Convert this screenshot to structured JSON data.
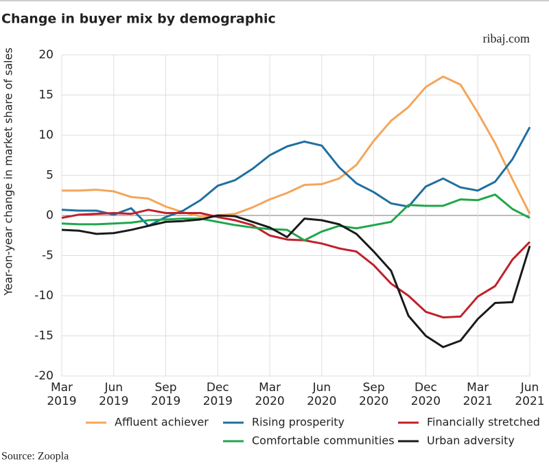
{
  "chart_data": {
    "type": "line",
    "title": "Change in buyer mix by demographic",
    "subtitle": "ribaj.com",
    "source": "Source: Zoopla",
    "y_label": "Year-on-year change in market share of sales",
    "categories": [
      "Mar 2019",
      null,
      null,
      "Jun 2019",
      null,
      null,
      "Sep 2019",
      null,
      null,
      "Dec 2019",
      null,
      null,
      "Mar 2020",
      null,
      null,
      "Jun 2020",
      null,
      null,
      "Sep 2020",
      null,
      null,
      "Dec 2020",
      null,
      null,
      "Mar 2021",
      null,
      null,
      "Jun 2021"
    ],
    "ylim": [
      -20,
      20
    ],
    "yticks": [
      -20,
      -15,
      -10,
      -5,
      0,
      5,
      10,
      15,
      20
    ],
    "grid": true,
    "series": [
      {
        "name": "Affluent achiever",
        "color": "#f4a55a",
        "values": [
          3.1,
          3.1,
          3.2,
          3.0,
          2.3,
          2.1,
          1.1,
          0.4,
          -0.1,
          0,
          0.2,
          1.0,
          2.0,
          2.8,
          3.8,
          3.9,
          4.6,
          6.3,
          9.3,
          11.8,
          13.5,
          16.0,
          17.3,
          16.3,
          12.8,
          9.0,
          4.5,
          0.2
        ]
      },
      {
        "name": "Rising prosperity",
        "color": "#1f6fa0",
        "values": [
          0.7,
          0.6,
          0.6,
          0.1,
          0.9,
          -1.3,
          -0.2,
          0.6,
          1.9,
          3.7,
          4.4,
          5.8,
          7.5,
          8.6,
          9.2,
          8.7,
          6.0,
          4.0,
          2.9,
          1.5,
          1.1,
          3.6,
          4.6,
          3.5,
          3.1,
          4.2,
          7.0,
          11.0
        ]
      },
      {
        "name": "Financially stretched",
        "color": "#c0202a",
        "values": [
          -0.3,
          0.1,
          0.2,
          0.3,
          0.2,
          0.7,
          0.3,
          0.3,
          0.3,
          -0.2,
          -0.6,
          -1.2,
          -2.5,
          -3.0,
          -3.1,
          -3.5,
          -4.1,
          -4.5,
          -6.2,
          -8.5,
          -10.0,
          -12.0,
          -12.7,
          -12.6,
          -10.1,
          -8.8,
          -5.5,
          -3.3
        ]
      },
      {
        "name": "Comfortable communities",
        "color": "#1fa64a",
        "values": [
          -1.0,
          -1.1,
          -1.1,
          -1.0,
          -0.9,
          -0.6,
          -0.5,
          -0.4,
          -0.4,
          -0.8,
          -1.2,
          -1.5,
          -1.7,
          -1.8,
          -3.1,
          -2.0,
          -1.3,
          -1.6,
          -1.2,
          -0.8,
          1.3,
          1.2,
          1.2,
          2.0,
          1.9,
          2.6,
          0.8,
          -0.3
        ]
      },
      {
        "name": "Urban adversity",
        "color": "#1a1a1a",
        "values": [
          -1.8,
          -1.9,
          -2.3,
          -2.2,
          -1.8,
          -1.3,
          -0.8,
          -0.7,
          -0.5,
          0,
          -0.1,
          -0.8,
          -1.5,
          -2.7,
          -0.4,
          -0.6,
          -1.1,
          -2.3,
          -4.5,
          -6.9,
          -12.5,
          -15.0,
          -16.4,
          -15.6,
          -12.9,
          -10.9,
          -10.8,
          -3.8
        ]
      }
    ]
  }
}
